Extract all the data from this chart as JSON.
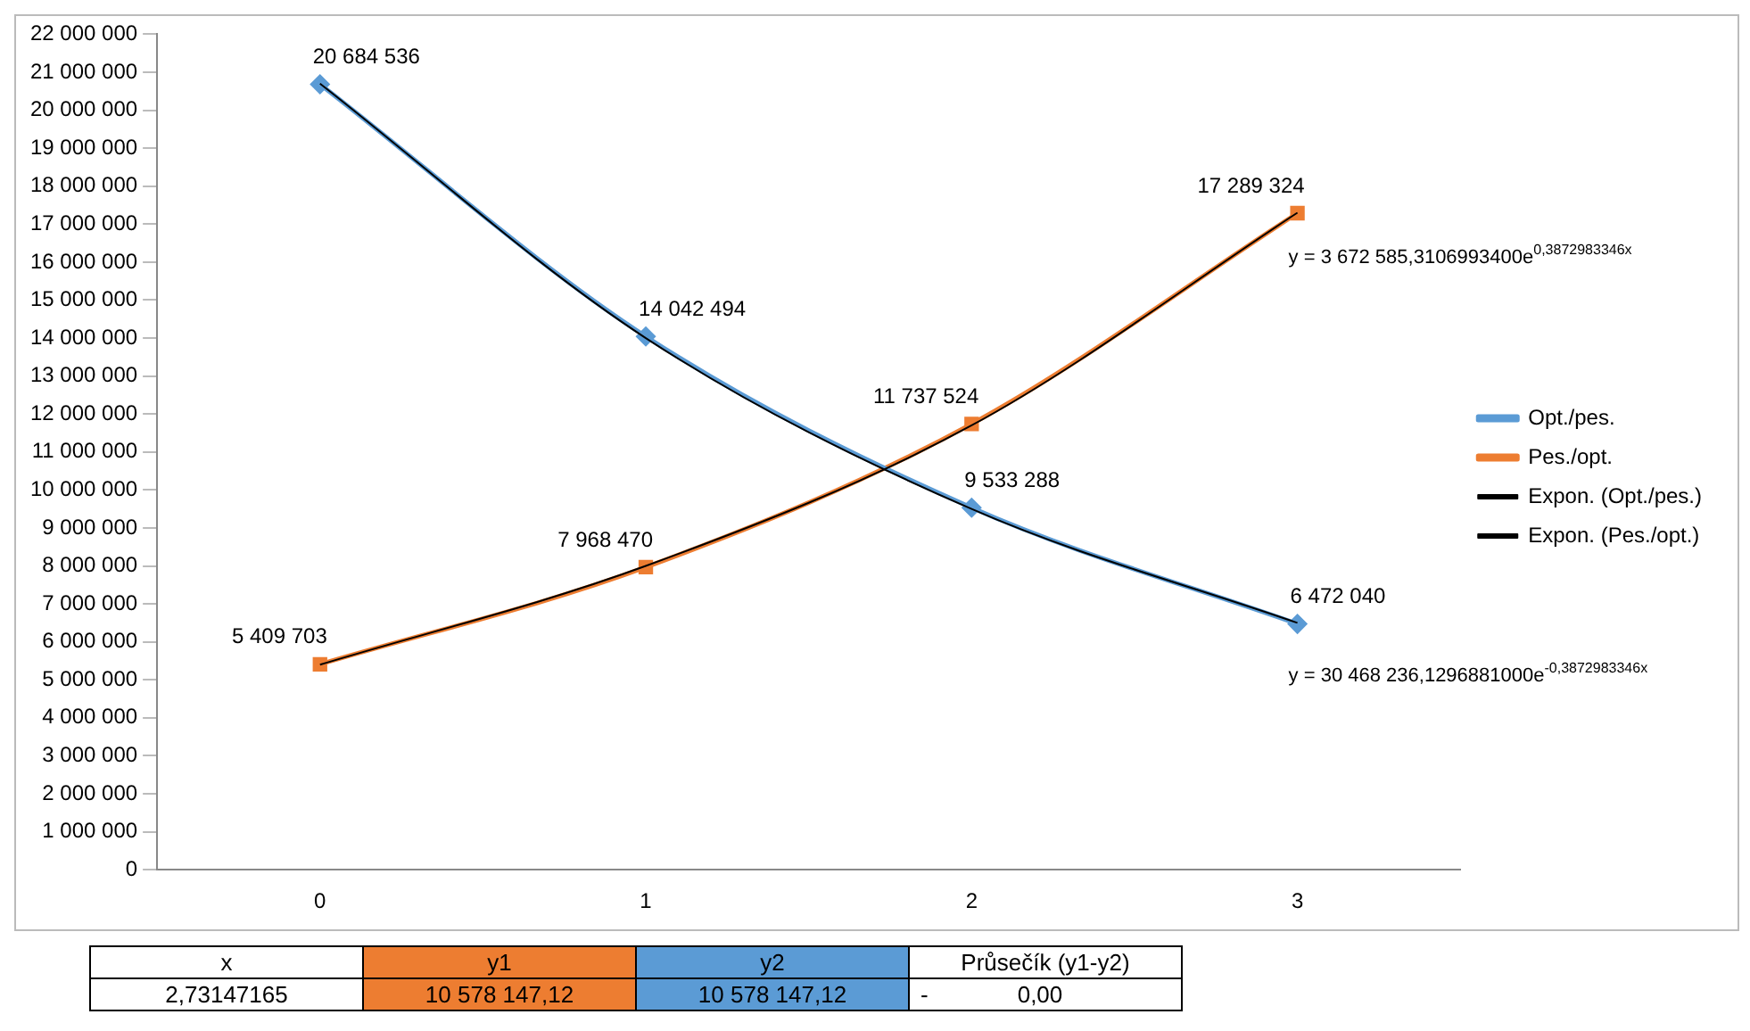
{
  "chart_data": {
    "type": "line",
    "categories": [
      "0",
      "1",
      "2",
      "3"
    ],
    "series": [
      {
        "name": "Opt./pes.",
        "color": "#5b9bd5",
        "marker": "diamond",
        "values": [
          20684536,
          14042494,
          9533288,
          6472040
        ],
        "value_labels": [
          "20 684 536",
          "14 042 494",
          "9 533 288",
          "6 472 040"
        ]
      },
      {
        "name": "Pes./opt.",
        "color": "#ed7d31",
        "marker": "square",
        "values": [
          5409703,
          7968470,
          11737524,
          17289324
        ],
        "value_labels": [
          "5 409 703",
          "7 968 470",
          "11 737 524",
          "17 289 324"
        ]
      },
      {
        "name": "Expon. (Opt./pes.)",
        "type": "line",
        "color": "#000000",
        "marker": "none",
        "values": [
          20700000,
          14000000,
          9500000,
          6500000
        ]
      },
      {
        "name": "Expon. (Pes./opt.)",
        "type": "line",
        "color": "#000000",
        "marker": "none",
        "values": [
          5400000,
          8000000,
          11700000,
          17300000
        ]
      }
    ],
    "ylim": [
      0,
      22000000
    ],
    "yticks": [
      0,
      1000000,
      2000000,
      3000000,
      4000000,
      5000000,
      6000000,
      7000000,
      8000000,
      9000000,
      10000000,
      11000000,
      12000000,
      13000000,
      14000000,
      15000000,
      16000000,
      17000000,
      18000000,
      19000000,
      20000000,
      21000000,
      22000000
    ],
    "grid": false,
    "legend": "right",
    "annotations": [
      "y = 3 672 585,3106993400e$^{0,3872983346x}$",
      "y = 30 468 236,1296881000e$^{-0,3872983346x}$",
      "x",
      "y1",
      "y2",
      "Průsečík (y1-y2)",
      "2,73147165",
      "10 578 147,12",
      "10 578 147,12",
      "-",
      "0,00"
    ]
  }
}
